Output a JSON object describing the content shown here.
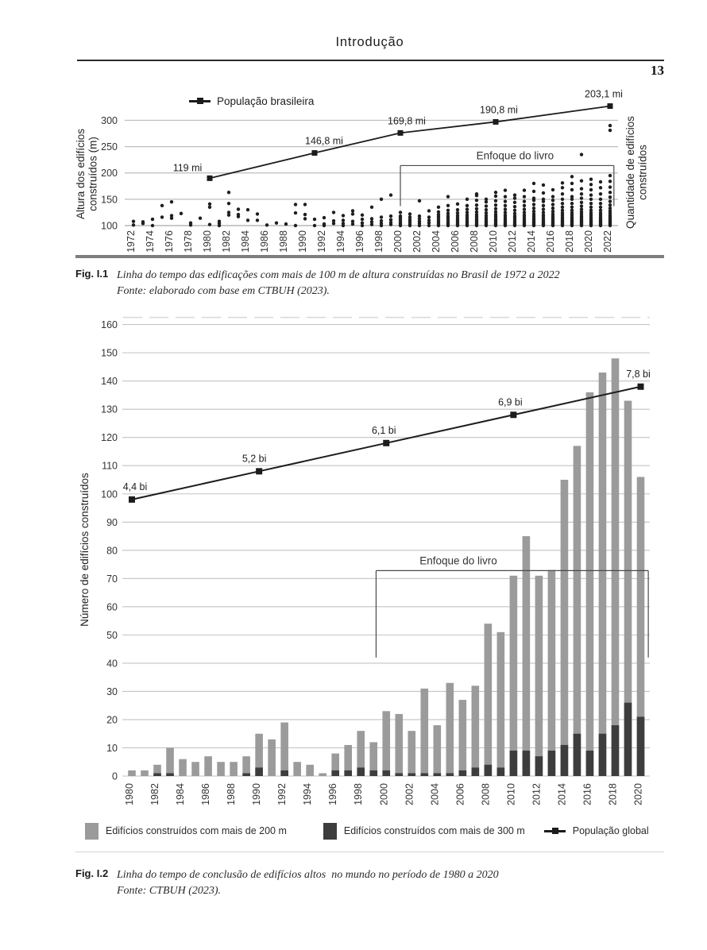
{
  "page": {
    "header_title": "Introdução",
    "page_number": "13"
  },
  "fig1": {
    "label": "Fig. I.1",
    "caption": "Linha do tempo das edificações com mais de 100 m de altura construídas no Brasil de 1972 a 2022",
    "source": "Fonte: elaborado com base em CTBUH (2023)."
  },
  "fig2": {
    "label": "Fig. I.2",
    "caption": "Linha do tempo de conclusão de edifícios altos  no mundo no período de 1980 a 2020",
    "source": "Fonte: CTBUH (2023)."
  },
  "chart_data": [
    {
      "type": "scatter",
      "description": "Buildings taller than 100 m completed in Brazil per year (each dot = one building, y = height in m) with Brazilian census population line",
      "ylabel_left": "Altura dos edifícios\nconstruídos (m)",
      "ylabel_right": "Quantidade de edifícios\nconstruídos",
      "y_ticks": [
        100,
        150,
        200,
        250,
        300
      ],
      "x_ticks": [
        1972,
        1974,
        1976,
        1978,
        1980,
        1982,
        1984,
        1986,
        1988,
        1990,
        1992,
        1994,
        1996,
        1998,
        2000,
        2002,
        2004,
        2006,
        2008,
        2010,
        2012,
        2014,
        2016,
        2018,
        2020,
        2022
      ],
      "ylim": [
        97,
        345
      ],
      "grid": true,
      "legend": {
        "label": "População brasileira",
        "position": "top-left"
      },
      "annotation": {
        "text": "Enfoque do livro",
        "x_start": 2000,
        "x_end": 2022.4,
        "y_top": 214,
        "y_arm": 137
      },
      "population": {
        "years": [
          1980,
          1991,
          2000,
          2010,
          2022
        ],
        "labels": [
          "119 mi",
          "146,8 mi",
          "169,8 mi",
          "190,8 mi",
          "203,1 mi"
        ],
        "display_y": [
          190,
          238,
          276,
          297,
          327
        ]
      },
      "scatter_heights_by_year": {
        "1972": [
          101,
          108
        ],
        "1973": [
          104,
          107
        ],
        "1974": [
          100,
          112
        ],
        "1975": [
          116,
          138
        ],
        "1976": [
          114,
          119,
          145
        ],
        "1977": [
          123
        ],
        "1978": [
          101,
          105
        ],
        "1979": [
          114
        ],
        "1980": [
          102,
          135,
          141
        ],
        "1981": [
          100,
          104,
          108
        ],
        "1982": [
          120,
          125,
          142,
          163
        ],
        "1983": [
          117,
          121,
          131
        ],
        "1984": [
          110,
          130
        ],
        "1985": [
          110,
          122
        ],
        "1986": [
          101
        ],
        "1987": [
          105
        ],
        "1988": [
          103
        ],
        "1989": [
          100,
          124,
          140
        ],
        "1990": [
          113,
          121,
          140
        ],
        "1991": [
          100,
          112
        ],
        "1992": [
          100,
          103,
          115
        ],
        "1993": [
          104,
          109,
          125
        ],
        "1994": [
          100,
          104,
          110,
          119
        ],
        "1995": [
          103,
          108,
          122,
          128
        ],
        "1996": [
          100,
          105,
          112,
          120
        ],
        "1997": [
          102,
          107,
          113,
          135
        ],
        "1998": [
          100,
          104,
          109,
          116,
          150
        ],
        "1999": [
          102,
          106,
          111,
          118,
          158
        ],
        "2000": [
          100,
          103,
          106,
          110,
          114,
          118,
          125
        ],
        "2001": [
          100,
          103,
          107,
          111,
          116,
          122
        ],
        "2002": [
          100,
          104,
          108,
          113,
          118,
          147
        ],
        "2003": [
          100,
          105,
          110,
          116,
          128
        ],
        "2004": [
          100,
          103,
          106,
          109,
          113,
          117,
          121,
          126,
          135
        ],
        "2005": [
          100,
          103,
          106,
          110,
          114,
          118,
          123,
          129,
          138,
          155
        ],
        "2006": [
          100,
          102,
          105,
          108,
          111,
          115,
          119,
          124,
          130,
          141
        ],
        "2007": [
          100,
          102,
          105,
          108,
          112,
          116,
          120,
          125,
          131,
          138,
          150
        ],
        "2008": [
          100,
          102,
          104,
          107,
          110,
          113,
          117,
          121,
          126,
          132,
          139,
          148,
          157,
          160
        ],
        "2009": [
          100,
          102,
          105,
          108,
          111,
          115,
          119,
          124,
          130,
          137,
          145,
          150
        ],
        "2010": [
          100,
          102,
          104,
          107,
          110,
          113,
          117,
          121,
          126,
          132,
          139,
          147,
          156,
          163
        ],
        "2011": [
          100,
          102,
          104,
          106,
          109,
          112,
          116,
          120,
          125,
          131,
          138,
          146,
          155,
          167
        ],
        "2012": [
          100,
          102,
          104,
          107,
          110,
          114,
          118,
          123,
          129,
          136,
          144,
          152,
          158
        ],
        "2013": [
          100,
          102,
          104,
          106,
          109,
          112,
          116,
          120,
          125,
          131,
          138,
          146,
          155,
          167
        ],
        "2014": [
          100,
          102,
          104,
          106,
          108,
          111,
          114,
          118,
          122,
          127,
          133,
          140,
          148,
          152,
          165,
          180
        ],
        "2015": [
          100,
          102,
          104,
          106,
          109,
          112,
          116,
          120,
          125,
          131,
          138,
          146,
          150,
          162,
          177
        ],
        "2016": [
          100,
          102,
          104,
          106,
          108,
          111,
          114,
          118,
          122,
          127,
          133,
          140,
          148,
          155,
          168
        ],
        "2017": [
          100,
          102,
          104,
          106,
          108,
          110,
          113,
          116,
          120,
          124,
          129,
          135,
          142,
          150,
          160,
          172,
          181
        ],
        "2018": [
          100,
          102,
          104,
          106,
          108,
          110,
          113,
          116,
          120,
          124,
          129,
          135,
          142,
          150,
          155,
          168,
          180,
          193
        ],
        "2019": [
          100,
          102,
          104,
          106,
          108,
          110,
          112,
          115,
          118,
          122,
          126,
          131,
          137,
          144,
          152,
          160,
          170,
          185,
          235
        ],
        "2020": [
          100,
          102,
          104,
          106,
          108,
          110,
          113,
          116,
          120,
          124,
          129,
          135,
          142,
          150,
          158,
          168,
          178,
          188
        ],
        "2021": [
          100,
          102,
          104,
          106,
          108,
          110,
          113,
          116,
          120,
          124,
          129,
          135,
          142,
          150,
          160,
          172,
          183
        ],
        "2022": [
          100,
          102,
          104,
          106,
          108,
          110,
          112,
          114,
          117,
          120,
          124,
          128,
          133,
          139,
          146,
          154,
          163,
          173,
          184,
          195,
          281,
          290
        ]
      }
    },
    {
      "type": "bar",
      "description": "Tall buildings completed worldwide per year (stacked: dark = taller than 300 m subset) with global population line",
      "ylabel": "Número de edifícios construídos",
      "y_ticks": [
        0,
        10,
        20,
        30,
        40,
        50,
        60,
        70,
        80,
        90,
        100,
        110,
        120,
        130,
        140,
        150,
        160
      ],
      "x_ticks": [
        1980,
        1982,
        1984,
        1986,
        1988,
        1990,
        1992,
        1994,
        1996,
        1998,
        2000,
        2002,
        2004,
        2006,
        2008,
        2010,
        2012,
        2014,
        2016,
        2018,
        2020
      ],
      "ylim": [
        0,
        160
      ],
      "grid": true,
      "categories": [
        1980,
        1981,
        1982,
        1983,
        1984,
        1985,
        1986,
        1987,
        1988,
        1989,
        1990,
        1991,
        1992,
        1993,
        1994,
        1995,
        1996,
        1997,
        1998,
        1999,
        2000,
        2001,
        2002,
        2003,
        2004,
        2005,
        2006,
        2007,
        2008,
        2009,
        2010,
        2011,
        2012,
        2013,
        2014,
        2015,
        2016,
        2017,
        2018,
        2019,
        2020
      ],
      "series": [
        {
          "name": "Edifícios construídos com mais de 200 m",
          "color": "#9b9b9b",
          "values": [
            2,
            2,
            4,
            10,
            6,
            5,
            7,
            5,
            5,
            7,
            15,
            13,
            19,
            5,
            4,
            1,
            8,
            11,
            16,
            12,
            23,
            22,
            16,
            31,
            18,
            33,
            27,
            32,
            54,
            51,
            71,
            85,
            71,
            73,
            105,
            117,
            136,
            143,
            148,
            133,
            106
          ]
        },
        {
          "name": "Edifícios construídos com mais de 300 m",
          "color": "#3d3d3d",
          "values": [
            0,
            0,
            1,
            1,
            0,
            0,
            0,
            0,
            0,
            1,
            3,
            0,
            2,
            0,
            0,
            0,
            2,
            2,
            3,
            2,
            2,
            1,
            1,
            1,
            1,
            1,
            2,
            3,
            4,
            3,
            9,
            9,
            7,
            9,
            11,
            15,
            9,
            15,
            18,
            26,
            21
          ]
        }
      ],
      "population": {
        "name": "População global",
        "years": [
          1980,
          1990,
          2000,
          2010,
          2020
        ],
        "labels": [
          "4,4 bi",
          "5,2 bi",
          "6,1 bi",
          "6,9 bi",
          "7,8 bi"
        ],
        "display_y": [
          98,
          108,
          118,
          128,
          138
        ]
      },
      "annotation": {
        "text": "Enfoque do livro",
        "x_start": 1999.2,
        "x_end": 2020.6,
        "y_top": 72.8,
        "y_arm": 42
      }
    }
  ]
}
